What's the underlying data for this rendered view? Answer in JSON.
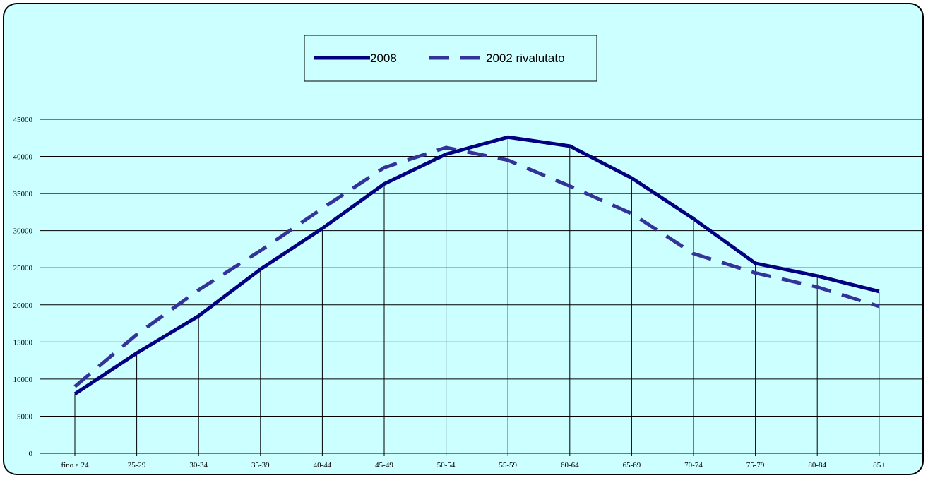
{
  "chart_data": {
    "type": "line",
    "categories": [
      "fino a 24",
      "25-29",
      "30-34",
      "35-39",
      "40-44",
      "45-49",
      "50-54",
      "55-59",
      "60-64",
      "65-69",
      "70-74",
      "75-79",
      "80-84",
      "85+"
    ],
    "ylim": [
      0,
      45000
    ],
    "yticks": [
      0,
      5000,
      10000,
      15000,
      20000,
      25000,
      30000,
      35000,
      40000,
      45000
    ],
    "grid": true,
    "legend_position": "top",
    "series": [
      {
        "name": "2008",
        "values": [
          8000,
          13500,
          18500,
          24800,
          30300,
          36300,
          40300,
          42600,
          41400,
          37100,
          31600,
          25600,
          23900,
          21800
        ],
        "color": "#000080",
        "style": "solid"
      },
      {
        "name": "2002 rivalutato",
        "values": [
          9000,
          16000,
          22000,
          27300,
          33000,
          38500,
          41200,
          39500,
          36000,
          32300,
          26900,
          24300,
          22400,
          19800
        ],
        "color": "#333399",
        "style": "dashed"
      }
    ]
  }
}
